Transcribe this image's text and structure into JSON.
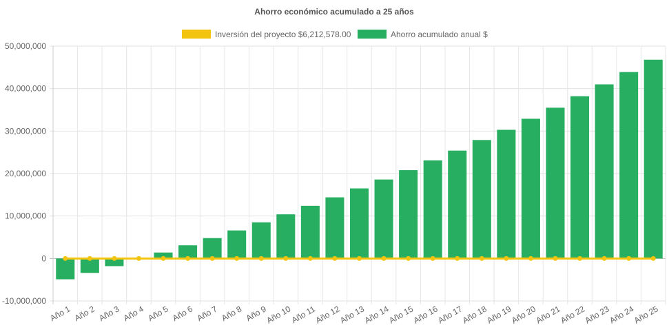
{
  "chart_data": {
    "type": "bar",
    "title": "Ahorro económico acumulado a 25 años",
    "categories": [
      "Año 1",
      "Año 2",
      "Año 3",
      "Año 4",
      "Año 5",
      "Año 6",
      "Año 7",
      "Año 8",
      "Año 9",
      "Año 10",
      "Año 11",
      "Año 12",
      "Año 13",
      "Año 14",
      "Año 15",
      "Año 16",
      "Año 17",
      "Año 18",
      "Año 19",
      "Año 20",
      "Año 21",
      "Año 22",
      "Año 23",
      "Año 24",
      "Año 25"
    ],
    "series": [
      {
        "name": "Inversión del proyecto $6,212,578.00",
        "type": "line",
        "color": "#f2c40f",
        "values": [
          0,
          0,
          0,
          0,
          0,
          0,
          0,
          0,
          0,
          0,
          0,
          0,
          0,
          0,
          0,
          0,
          0,
          0,
          0,
          0,
          0,
          0,
          0,
          0,
          0
        ]
      },
      {
        "name": "Ahorro acumulado anual $",
        "type": "bar",
        "color": "#27ae60",
        "values": [
          -4900000,
          -3400000,
          -1800000,
          -100000,
          1400000,
          3100000,
          4800000,
          6600000,
          8500000,
          10400000,
          12400000,
          14400000,
          16500000,
          18600000,
          20800000,
          23100000,
          25400000,
          27900000,
          30300000,
          32900000,
          35500000,
          38200000,
          41000000,
          43900000,
          46800000
        ]
      }
    ],
    "ylim": [
      -10000000,
      50000000
    ],
    "yticks": [
      50000000,
      40000000,
      30000000,
      20000000,
      10000000,
      0,
      -10000000
    ],
    "ytick_labels": [
      "50,000,000",
      "40,000,000",
      "30,000,000",
      "20,000,000",
      "10,000,000",
      "0",
      "-10,000,000"
    ],
    "grid": true,
    "legend": "top"
  }
}
